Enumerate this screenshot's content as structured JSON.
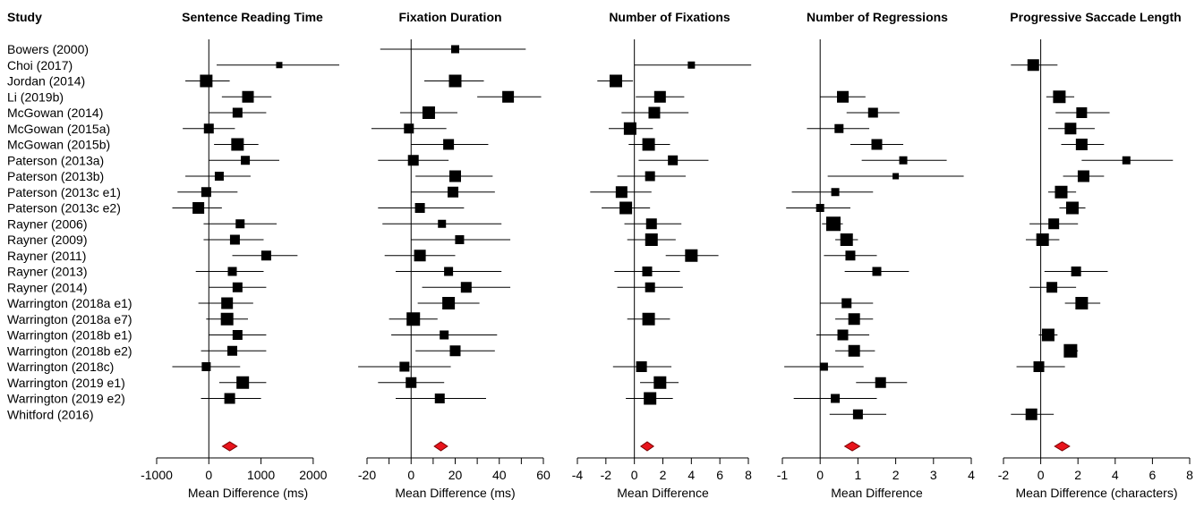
{
  "study_header": "Study",
  "colors": {
    "marker": "#000000",
    "summary_fill": "#e8141c",
    "summary_stroke": "#7a0000"
  },
  "chart_data": {
    "type": "forest",
    "studies": [
      "Bowers (2000)",
      "Choi (2017)",
      "Jordan (2014)",
      "Li (2019b)",
      "McGowan (2014)",
      "McGowan (2015a)",
      "McGowan (2015b)",
      "Paterson (2013a)",
      "Paterson (2013b)",
      "Paterson (2013c e1)",
      "Paterson (2013c e2)",
      "Rayner (2006)",
      "Rayner (2009)",
      "Rayner (2011)",
      "Rayner (2013)",
      "Rayner (2014)",
      "Warrington (2018a e1)",
      "Warrington (2018a e7)",
      "Warrington (2018b e1)",
      "Warrington (2018b e2)",
      "Warrington (2018c)",
      "Warrington (2019 e1)",
      "Warrington (2019 e2)",
      "Whitford (2016)"
    ],
    "panels": [
      {
        "title": "Sentence Reading Time",
        "xlabel": "Mean Difference (ms)",
        "xlim": [
          -1000,
          2500
        ],
        "ticks": [
          -1000,
          0,
          1000,
          2000
        ],
        "tick_labels": [
          "-1000",
          "0",
          "1000",
          "2000"
        ],
        "summary": {
          "est": 400,
          "lo": 260,
          "hi": 540
        },
        "rows": [
          null,
          {
            "est": 1350,
            "lo": 150,
            "hi": 2500,
            "w": 7
          },
          {
            "est": -50,
            "lo": -450,
            "hi": 400,
            "w": 14
          },
          {
            "est": 750,
            "lo": 250,
            "hi": 1200,
            "w": 13
          },
          {
            "est": 550,
            "lo": 0,
            "hi": 1100,
            "w": 11
          },
          {
            "est": 0,
            "lo": -500,
            "hi": 500,
            "w": 11
          },
          {
            "est": 550,
            "lo": 100,
            "hi": 950,
            "w": 14
          },
          {
            "est": 700,
            "lo": 0,
            "hi": 1350,
            "w": 10
          },
          {
            "est": 200,
            "lo": -450,
            "hi": 800,
            "w": 10
          },
          {
            "est": -50,
            "lo": -600,
            "hi": 550,
            "w": 11
          },
          {
            "est": -200,
            "lo": -700,
            "hi": 250,
            "w": 13
          },
          {
            "est": 600,
            "lo": -100,
            "hi": 1300,
            "w": 10
          },
          {
            "est": 500,
            "lo": -100,
            "hi": 1050,
            "w": 11
          },
          {
            "est": 1100,
            "lo": 450,
            "hi": 1700,
            "w": 11
          },
          {
            "est": 450,
            "lo": -250,
            "hi": 1050,
            "w": 10
          },
          {
            "est": 550,
            "lo": 0,
            "hi": 1100,
            "w": 11
          },
          {
            "est": 350,
            "lo": -200,
            "hi": 850,
            "w": 13
          },
          {
            "est": 350,
            "lo": -50,
            "hi": 750,
            "w": 14
          },
          {
            "est": 550,
            "lo": 0,
            "hi": 1100,
            "w": 11
          },
          {
            "est": 450,
            "lo": -150,
            "hi": 1100,
            "w": 11
          },
          {
            "est": -50,
            "lo": -700,
            "hi": 600,
            "w": 10
          },
          {
            "est": 650,
            "lo": 200,
            "hi": 1100,
            "w": 14
          },
          {
            "est": 400,
            "lo": -150,
            "hi": 1000,
            "w": 12
          },
          null
        ]
      },
      {
        "title": "Fixation Duration",
        "xlabel": "Mean Difference (ms)",
        "xlim": [
          -20,
          60
        ],
        "ticks": [
          -20,
          -10,
          0,
          10,
          20,
          30,
          40,
          50,
          60
        ],
        "tick_labels": [
          "-20",
          "",
          "0",
          "",
          "20",
          "",
          "40",
          "",
          "60"
        ],
        "summary": {
          "est": 13.5,
          "lo": 10.5,
          "hi": 16.5
        },
        "rows": [
          {
            "est": 20,
            "lo": -14,
            "hi": 52,
            "w": 9
          },
          null,
          {
            "est": 20,
            "lo": 6,
            "hi": 33,
            "w": 14
          },
          {
            "est": 44,
            "lo": 30,
            "hi": 59,
            "w": 13
          },
          {
            "est": 8,
            "lo": -5,
            "hi": 21,
            "w": 14
          },
          {
            "est": -1,
            "lo": -18,
            "hi": 16,
            "w": 11
          },
          {
            "est": 17,
            "lo": 0,
            "hi": 35,
            "w": 12
          },
          {
            "est": 1,
            "lo": -15,
            "hi": 17,
            "w": 12
          },
          {
            "est": 20,
            "lo": 2,
            "hi": 37,
            "w": 13
          },
          {
            "est": 19,
            "lo": 0,
            "hi": 38,
            "w": 12
          },
          {
            "est": 4,
            "lo": -15,
            "hi": 24,
            "w": 11
          },
          {
            "est": 14,
            "lo": -13,
            "hi": 41,
            "w": 9
          },
          {
            "est": 22,
            "lo": 0,
            "hi": 45,
            "w": 10
          },
          {
            "est": 4,
            "lo": -12,
            "hi": 20,
            "w": 13
          },
          {
            "est": 17,
            "lo": -7,
            "hi": 41,
            "w": 10
          },
          {
            "est": 25,
            "lo": 5,
            "hi": 45,
            "w": 12
          },
          {
            "est": 17,
            "lo": 3,
            "hi": 31,
            "w": 14
          },
          {
            "est": 1,
            "lo": -10,
            "hi": 12,
            "w": 15
          },
          {
            "est": 15,
            "lo": -9,
            "hi": 39,
            "w": 10
          },
          {
            "est": 20,
            "lo": 2,
            "hi": 38,
            "w": 12
          },
          {
            "est": -3,
            "lo": -24,
            "hi": 18,
            "w": 11
          },
          {
            "est": 0,
            "lo": -15,
            "hi": 15,
            "w": 12
          },
          {
            "est": 13,
            "lo": -7,
            "hi": 34,
            "w": 11
          },
          null
        ]
      },
      {
        "title": "Number of Fixations",
        "xlabel": "Mean Difference",
        "xlim": [
          -4,
          8
        ],
        "ticks": [
          -4,
          -2,
          0,
          2,
          4,
          6,
          8
        ],
        "tick_labels": [
          "-4",
          "-2",
          "0",
          "2",
          "4",
          "6",
          "8"
        ],
        "summary": {
          "est": 0.9,
          "lo": 0.45,
          "hi": 1.35
        },
        "rows": [
          null,
          {
            "est": 4.0,
            "lo": 0.0,
            "hi": 8.2,
            "w": 8
          },
          {
            "est": -1.3,
            "lo": -2.6,
            "hi": -0.1,
            "w": 14
          },
          {
            "est": 1.8,
            "lo": 0.1,
            "hi": 3.5,
            "w": 13
          },
          {
            "est": 1.4,
            "lo": -0.9,
            "hi": 3.8,
            "w": 13
          },
          {
            "est": -0.3,
            "lo": -1.8,
            "hi": 1.3,
            "w": 14
          },
          {
            "est": 1.0,
            "lo": -0.4,
            "hi": 2.5,
            "w": 14
          },
          {
            "est": 2.7,
            "lo": 0.3,
            "hi": 5.2,
            "w": 11
          },
          {
            "est": 1.1,
            "lo": -1.2,
            "hi": 3.6,
            "w": 11
          },
          {
            "est": -0.9,
            "lo": -3.1,
            "hi": 1.2,
            "w": 13
          },
          {
            "est": -0.6,
            "lo": -2.3,
            "hi": 1.1,
            "w": 14
          },
          {
            "est": 1.2,
            "lo": -0.7,
            "hi": 3.3,
            "w": 12
          },
          {
            "est": 1.2,
            "lo": -0.5,
            "hi": 2.9,
            "w": 14
          },
          {
            "est": 4.0,
            "lo": 2.2,
            "hi": 5.9,
            "w": 14
          },
          {
            "est": 0.9,
            "lo": -1.4,
            "hi": 3.2,
            "w": 11
          },
          {
            "est": 1.1,
            "lo": -1.2,
            "hi": 3.4,
            "w": 11
          },
          null,
          {
            "est": 1.0,
            "lo": -0.5,
            "hi": 2.5,
            "w": 14
          },
          null,
          null,
          {
            "est": 0.5,
            "lo": -1.5,
            "hi": 2.6,
            "w": 12
          },
          {
            "est": 1.8,
            "lo": 0.4,
            "hi": 3.1,
            "w": 14
          },
          {
            "est": 1.1,
            "lo": -0.6,
            "hi": 2.7,
            "w": 14
          },
          null
        ]
      },
      {
        "title": "Number of Regressions",
        "xlabel": "Mean Difference",
        "xlim": [
          -1,
          4
        ],
        "ticks": [
          -1,
          0,
          1,
          2,
          3,
          4
        ],
        "tick_labels": [
          "-1",
          "0",
          "1",
          "2",
          "3",
          "4"
        ],
        "summary": {
          "est": 0.85,
          "lo": 0.65,
          "hi": 1.05
        },
        "rows": [
          null,
          null,
          null,
          {
            "est": 0.6,
            "lo": 0.0,
            "hi": 1.2,
            "w": 13
          },
          {
            "est": 1.4,
            "lo": 0.7,
            "hi": 2.1,
            "w": 11
          },
          {
            "est": 0.5,
            "lo": -0.35,
            "hi": 1.3,
            "w": 10
          },
          {
            "est": 1.5,
            "lo": 0.8,
            "hi": 2.2,
            "w": 12
          },
          {
            "est": 2.2,
            "lo": 1.1,
            "hi": 3.35,
            "w": 9
          },
          {
            "est": 2.0,
            "lo": 0.2,
            "hi": 3.8,
            "w": 7
          },
          {
            "est": 0.4,
            "lo": -0.75,
            "hi": 1.4,
            "w": 9
          },
          {
            "est": 0.0,
            "lo": -0.9,
            "hi": 0.8,
            "w": 9
          },
          {
            "est": 0.35,
            "lo": 0.05,
            "hi": 0.6,
            "w": 16
          },
          {
            "est": 0.7,
            "lo": 0.4,
            "hi": 1.0,
            "w": 14
          },
          {
            "est": 0.8,
            "lo": 0.1,
            "hi": 1.5,
            "w": 11
          },
          {
            "est": 1.5,
            "lo": 0.65,
            "hi": 2.35,
            "w": 10
          },
          null,
          {
            "est": 0.7,
            "lo": 0.0,
            "hi": 1.4,
            "w": 11
          },
          {
            "est": 0.9,
            "lo": 0.4,
            "hi": 1.4,
            "w": 13
          },
          {
            "est": 0.6,
            "lo": -0.1,
            "hi": 1.3,
            "w": 12
          },
          {
            "est": 0.9,
            "lo": 0.4,
            "hi": 1.45,
            "w": 13
          },
          {
            "est": 0.1,
            "lo": -0.95,
            "hi": 1.15,
            "w": 9
          },
          {
            "est": 1.6,
            "lo": 0.95,
            "hi": 2.3,
            "w": 12
          },
          {
            "est": 0.4,
            "lo": -0.7,
            "hi": 1.5,
            "w": 10
          },
          {
            "est": 1.0,
            "lo": 0.25,
            "hi": 1.75,
            "w": 11
          }
        ]
      },
      {
        "title": "Progressive Saccade Length",
        "xlabel": "Mean Difference (characters)",
        "xlim": [
          -2,
          8
        ],
        "ticks": [
          -2,
          0,
          2,
          4,
          6,
          8
        ],
        "tick_labels": [
          "-2",
          "0",
          "2",
          "4",
          "6",
          "8"
        ],
        "summary": {
          "est": 1.15,
          "lo": 0.75,
          "hi": 1.55
        },
        "rows": [
          null,
          {
            "est": -0.4,
            "lo": -1.6,
            "hi": 0.9,
            "w": 13
          },
          null,
          {
            "est": 1.0,
            "lo": 0.3,
            "hi": 1.8,
            "w": 14
          },
          {
            "est": 2.2,
            "lo": 0.8,
            "hi": 3.7,
            "w": 12
          },
          {
            "est": 1.6,
            "lo": 0.4,
            "hi": 2.9,
            "w": 13
          },
          {
            "est": 2.2,
            "lo": 1.1,
            "hi": 3.4,
            "w": 13
          },
          {
            "est": 4.6,
            "lo": 2.2,
            "hi": 7.1,
            "w": 9
          },
          {
            "est": 2.3,
            "lo": 1.2,
            "hi": 3.4,
            "w": 13
          },
          {
            "est": 1.1,
            "lo": 0.4,
            "hi": 1.9,
            "w": 14
          },
          {
            "est": 1.7,
            "lo": 1.0,
            "hi": 2.4,
            "w": 14
          },
          {
            "est": 0.7,
            "lo": -0.6,
            "hi": 2.0,
            "w": 12
          },
          {
            "est": 0.1,
            "lo": -0.8,
            "hi": 1.0,
            "w": 14
          },
          null,
          {
            "est": 1.9,
            "lo": 0.2,
            "hi": 3.6,
            "w": 11
          },
          {
            "est": 0.6,
            "lo": -0.6,
            "hi": 1.9,
            "w": 12
          },
          {
            "est": 2.2,
            "lo": 1.3,
            "hi": 3.2,
            "w": 14
          },
          null,
          {
            "est": 0.4,
            "lo": -0.1,
            "hi": 0.9,
            "w": 14
          },
          {
            "est": 1.6,
            "lo": 1.3,
            "hi": 2.0,
            "w": 15
          },
          {
            "est": -0.1,
            "lo": -1.3,
            "hi": 1.3,
            "w": 12
          },
          null,
          null,
          {
            "est": -0.5,
            "lo": -1.6,
            "hi": 0.7,
            "w": 13
          }
        ]
      }
    ]
  }
}
